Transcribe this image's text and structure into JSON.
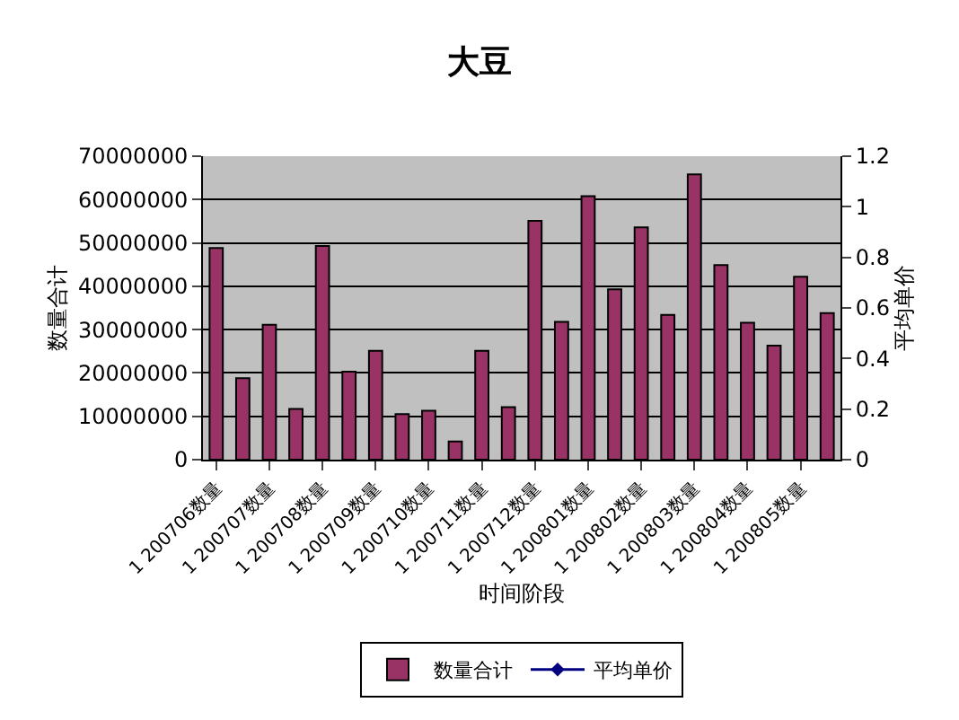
{
  "chart_data": {
    "type": "bar",
    "title": "大豆",
    "xlabel": "时间阶段",
    "ylabel": "数量合计",
    "y2label": "平均单价",
    "categories": [
      "1 200706数量",
      null,
      "1 200707数量",
      null,
      "1 200708数量",
      null,
      "1 200709数量",
      null,
      "1 200710数量",
      null,
      "1 200711数量",
      null,
      "1 200712数量",
      null,
      "1 200801数量",
      null,
      "1 200802数量",
      null,
      "1 200803数量",
      null,
      "1 200804数量",
      null,
      "1 200805数量",
      null
    ],
    "series": [
      {
        "name": "数量合计",
        "color": "#993366",
        "values": [
          48800000,
          18800000,
          31100000,
          11700000,
          49300000,
          20300000,
          25100000,
          10500000,
          11300000,
          4200000,
          25100000,
          12100000,
          55100000,
          31800000,
          60800000,
          39300000,
          53600000,
          33400000,
          65800000,
          44900000,
          31600000,
          26300000,
          42200000,
          33800000
        ]
      },
      {
        "name": "平均单价",
        "type": "line",
        "axis": "y2",
        "color": "#000080",
        "marker": "diamond",
        "values": [
          null,
          null,
          null,
          null,
          null,
          null,
          null,
          null,
          null,
          null,
          null,
          null,
          null,
          null,
          null,
          null,
          null,
          null,
          null,
          null,
          null,
          null,
          null,
          null
        ]
      }
    ],
    "ylim": [
      0,
      70000000
    ],
    "yticks": [
      0,
      10000000,
      20000000,
      30000000,
      40000000,
      50000000,
      60000000,
      70000000
    ],
    "y2lim": [
      0,
      1.2
    ],
    "y2ticks": [
      0,
      0.2,
      0.4,
      0.6,
      0.8,
      1,
      1.2
    ],
    "grid": "y",
    "legend": "bottom"
  }
}
